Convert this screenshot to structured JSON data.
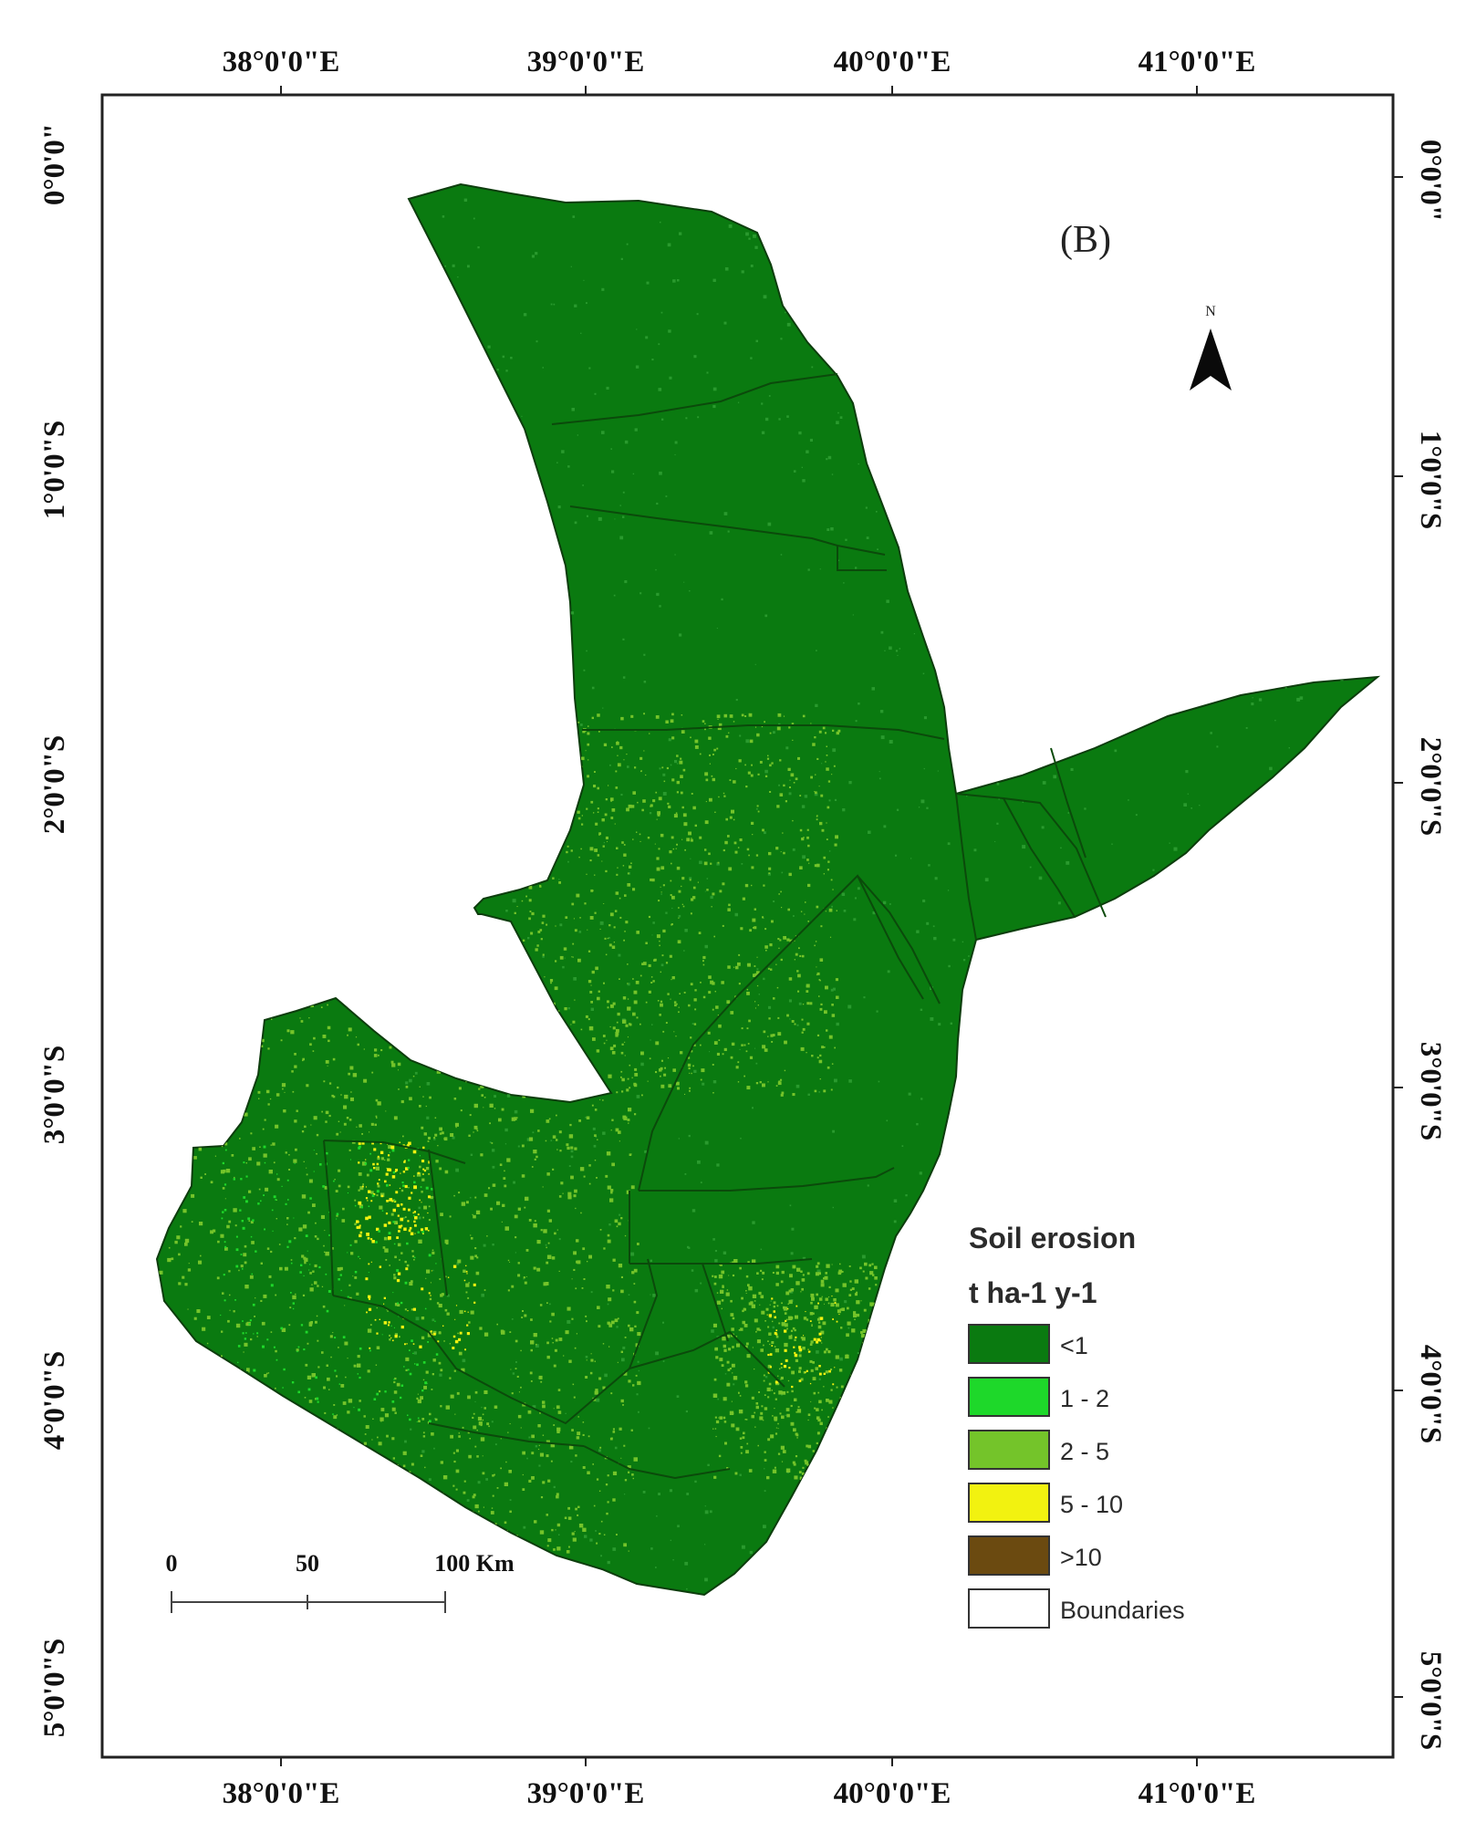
{
  "map": {
    "panel_label": "(B)",
    "north_label": "N",
    "colors": {
      "lt1": "#0a7a10",
      "r1_2": "#1ed82a",
      "r2_5": "#74c42a",
      "r5_10": "#f2f210",
      "gt10": "#6b4a10",
      "boundary": "#ffffff",
      "internal_border": "#0b4a0b",
      "frame": "#222222"
    },
    "top_lon_labels": [
      "38°0'0\"E",
      "39°0'0\"E",
      "40°0'0\"E",
      "41°0'0\"E"
    ],
    "bottom_lon_labels": [
      "38°0'0\"E",
      "39°0'0\"E",
      "40°0'0\"E",
      "41°0'0\"E"
    ],
    "left_lat_labels": [
      "0°0'0\"",
      "1°0'0\"S",
      "2°0'0\"S",
      "3°0'0\"S",
      "4°0'0\"S",
      "5°0'0\"S"
    ],
    "right_lat_labels": [
      "0°0'0\"",
      "1°0'0\"S",
      "2°0'0\"S",
      "3°0'0\"S",
      "4°0'0\"S",
      "5°0'0\"S"
    ],
    "scale_bar": {
      "labels": [
        "0",
        "50",
        "100 Km"
      ]
    },
    "legend": {
      "title": "Soil erosion",
      "unit": "t ha-1 y-1",
      "items": [
        {
          "label": "<1",
          "color": "#0a7a10"
        },
        {
          "label": "1 - 2",
          "color": "#1ed82a"
        },
        {
          "label": "2 - 5",
          "color": "#74c42a"
        },
        {
          "label": "5 - 10",
          "color": "#f2f210"
        },
        {
          "label": ">10",
          "color": "#6b4a10"
        },
        {
          "label": "Boundaries",
          "color": "#ffffff"
        }
      ]
    }
  }
}
